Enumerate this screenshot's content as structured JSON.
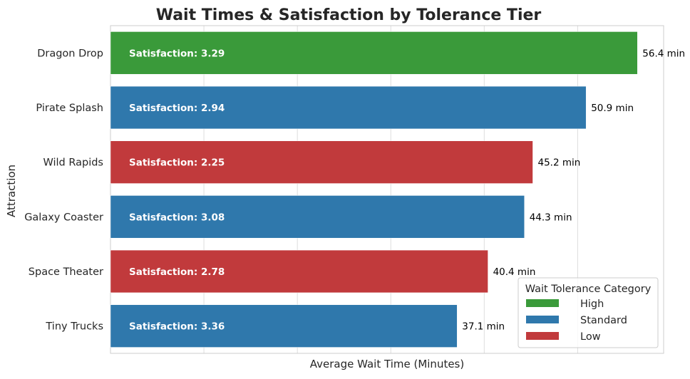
{
  "chart_data": {
    "type": "bar",
    "orientation": "horizontal",
    "title": "Wait Times & Satisfaction by Tolerance Tier",
    "xlabel": "Average Wait Time (Minutes)",
    "ylabel": "Attraction",
    "xlim": [
      0,
      59.2
    ],
    "grid": true,
    "categories": [
      "Dragon Drop",
      "Pirate Splash",
      "Wild Rapids",
      "Galaxy Coaster",
      "Space Theater",
      "Tiny Trucks"
    ],
    "values": [
      56.4,
      50.9,
      45.2,
      44.3,
      40.4,
      37.1
    ],
    "value_labels": [
      "56.4 min",
      "50.9 min",
      "45.2 min",
      "44.3 min",
      "40.4 min",
      "37.1 min"
    ],
    "satisfaction_labels": [
      "Satisfaction: 3.29",
      "Satisfaction: 2.94",
      "Satisfaction: 2.25",
      "Satisfaction: 3.08",
      "Satisfaction: 2.78",
      "Satisfaction: 3.36"
    ],
    "tiers": [
      "High",
      "Standard",
      "Low",
      "Standard",
      "Low",
      "Standard"
    ],
    "legend": {
      "title": "Wait Tolerance Category",
      "placement": "bottom-right",
      "entries": [
        {
          "name": "High",
          "color": "#3a9a3a"
        },
        {
          "name": "Standard",
          "color": "#2f78ac"
        },
        {
          "name": "Low",
          "color": "#c13a3c"
        }
      ]
    }
  }
}
